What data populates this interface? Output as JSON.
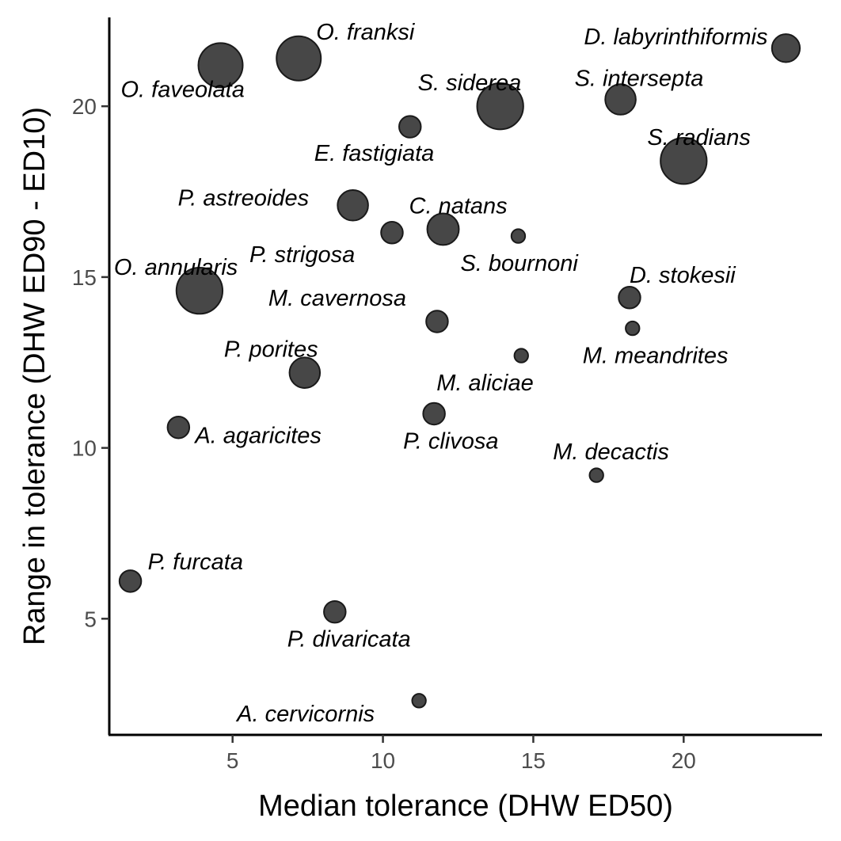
{
  "chart_data": {
    "type": "scatter",
    "title": "",
    "xlabel": "Median tolerance (DHW ED50)",
    "ylabel": "Range in tolerance (DHW ED90 - ED10)",
    "xlim": [
      0.9,
      24.6
    ],
    "ylim": [
      1.6,
      22.6
    ],
    "xticks": [
      5,
      10,
      15,
      20
    ],
    "yticks": [
      5,
      10,
      15,
      20
    ],
    "grid": false,
    "legend": "none",
    "point_color": "#333333",
    "points": [
      {
        "label": "O. franksi",
        "x": 7.2,
        "y": 21.4,
        "size": 1.0
      },
      {
        "label": "O. faveolata",
        "x": 4.6,
        "y": 21.2,
        "size": 1.0
      },
      {
        "label": "D. labyrinthiformis",
        "x": 23.4,
        "y": 21.7,
        "size": 0.55
      },
      {
        "label": "S. siderea",
        "x": 13.9,
        "y": 20.0,
        "size": 1.05
      },
      {
        "label": "S. intersepta",
        "x": 17.9,
        "y": 20.2,
        "size": 0.62
      },
      {
        "label": "E. fastigiata",
        "x": 10.9,
        "y": 19.4,
        "size": 0.38
      },
      {
        "label": "S. radians",
        "x": 20.0,
        "y": 18.4,
        "size": 1.05
      },
      {
        "label": "P. astreoides",
        "x": 9.0,
        "y": 17.1,
        "size": 0.62
      },
      {
        "label": "C. natans",
        "x": 12.0,
        "y": 16.4,
        "size": 0.65
      },
      {
        "label": "P. strigosa",
        "x": 10.3,
        "y": 16.3,
        "size": 0.38
      },
      {
        "label": "S. bournoni",
        "x": 14.5,
        "y": 16.2,
        "size": 0.16
      },
      {
        "label": "O. annularis",
        "x": 3.9,
        "y": 14.6,
        "size": 1.05
      },
      {
        "label": "D. stokesii",
        "x": 18.2,
        "y": 14.4,
        "size": 0.38
      },
      {
        "label": "M. cavernosa",
        "x": 11.8,
        "y": 13.7,
        "size": 0.38
      },
      {
        "label": "M. meandrites",
        "x": 18.3,
        "y": 13.5,
        "size": 0.16
      },
      {
        "label": "M. aliciae",
        "x": 14.6,
        "y": 12.7,
        "size": 0.16
      },
      {
        "label": "P. porites",
        "x": 7.4,
        "y": 12.2,
        "size": 0.62
      },
      {
        "label": "P. clivosa",
        "x": 11.7,
        "y": 11.0,
        "size": 0.38
      },
      {
        "label": "A. agaricites",
        "x": 3.2,
        "y": 10.6,
        "size": 0.38
      },
      {
        "label": "M. decactis",
        "x": 17.1,
        "y": 9.2,
        "size": 0.16
      },
      {
        "label": "P. furcata",
        "x": 1.6,
        "y": 6.1,
        "size": 0.38
      },
      {
        "label": "P. divaricata",
        "x": 8.4,
        "y": 5.2,
        "size": 0.38
      },
      {
        "label": "A. cervicornis",
        "x": 11.2,
        "y": 2.6,
        "size": 0.16
      }
    ]
  }
}
